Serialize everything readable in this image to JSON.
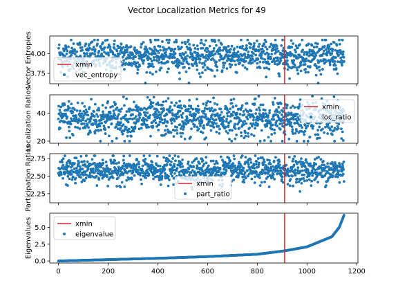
{
  "figure": {
    "title": "Vector Localization Metrics for 49"
  },
  "colors": {
    "points": "#1f77b4",
    "xmin_line": "#d62728",
    "axes": "#000000"
  },
  "chart_data": [
    {
      "type": "scatter",
      "ylabel": "Vector Entropies",
      "xlim": [
        -35,
        1205
      ],
      "ylim": [
        3.62,
        4.22
      ],
      "yticks": [
        3.75,
        4.0
      ],
      "ytick_labels": [
        "3.75",
        "4.00"
      ],
      "xmin": 910,
      "legend": {
        "placement": "bottom-left",
        "entries": [
          "xmin",
          "vec_entropy"
        ]
      },
      "grid": false,
      "series": [
        {
          "name": "vec_entropy",
          "n_points": 1150,
          "x": {
            "start": 0,
            "end": 1149,
            "step": 1
          },
          "y": {
            "center": 3.97,
            "spread": 0.1,
            "min": 3.63,
            "max": 4.17,
            "pattern": "random scatter around center"
          }
        }
      ]
    },
    {
      "type": "scatter",
      "ylabel": "Localization Ratios",
      "xlim": [
        -35,
        1205
      ],
      "ylim": [
        18.5,
        53
      ],
      "yticks": [
        20,
        40
      ],
      "ytick_labels": [
        "20",
        "40"
      ],
      "xmin": 910,
      "legend": {
        "placement": "top-right",
        "entries": [
          "xmin",
          "loc_ratio"
        ]
      },
      "grid": false,
      "series": [
        {
          "name": "loc_ratio",
          "n_points": 1150,
          "x": {
            "start": 0,
            "end": 1149,
            "step": 1
          },
          "y": {
            "center": 36,
            "spread": 6.5,
            "min": 20,
            "max": 52,
            "pattern": "random scatter around center"
          }
        }
      ]
    },
    {
      "type": "scatter",
      "ylabel": "Participation Ratios",
      "xlim": [
        -35,
        1205
      ],
      "ylim": [
        2.12,
        2.82
      ],
      "yticks": [
        2.25,
        2.5,
        2.75
      ],
      "ytick_labels": [
        "2.25",
        "2.50",
        "2.75"
      ],
      "xmin": 910,
      "legend": {
        "placement": "bottom-center",
        "entries": [
          "xmin",
          "part_ratio"
        ]
      },
      "grid": false,
      "series": [
        {
          "name": "part_ratio",
          "n_points": 1150,
          "x": {
            "start": 0,
            "end": 1149,
            "step": 1
          },
          "y": {
            "center": 2.58,
            "spread": 0.09,
            "min": 2.16,
            "max": 2.79,
            "pattern": "random scatter around center"
          }
        }
      ]
    },
    {
      "type": "scatter",
      "ylabel": "Eigenvalues",
      "xlim": [
        -35,
        1205
      ],
      "ylim": [
        -0.3,
        7.1
      ],
      "yticks": [
        0.0,
        2.5,
        5.0
      ],
      "ytick_labels": [
        "0.0",
        "2.5",
        "5.0"
      ],
      "xticks": [
        0,
        200,
        400,
        600,
        800,
        1000,
        1200
      ],
      "xtick_labels": [
        "0",
        "200",
        "400",
        "600",
        "800",
        "1000",
        "1200"
      ],
      "xmin": 910,
      "legend": {
        "placement": "top-left",
        "entries": [
          "xmin",
          "eigenvalue"
        ]
      },
      "grid": false,
      "series": [
        {
          "name": "eigenvalue",
          "n_points": 1150,
          "x": {
            "start": 0,
            "end": 1149,
            "step": 1
          },
          "y": {
            "pattern": "sorted ascending",
            "anchors": [
              [
                0,
                0.0
              ],
              [
                100,
                0.1
              ],
              [
                200,
                0.2
              ],
              [
                400,
                0.4
              ],
              [
                600,
                0.65
              ],
              [
                800,
                1.0
              ],
              [
                910,
                1.5
              ],
              [
                1000,
                2.1
              ],
              [
                1100,
                3.6
              ],
              [
                1130,
                5.0
              ],
              [
                1149,
                6.8
              ]
            ]
          }
        }
      ]
    }
  ]
}
